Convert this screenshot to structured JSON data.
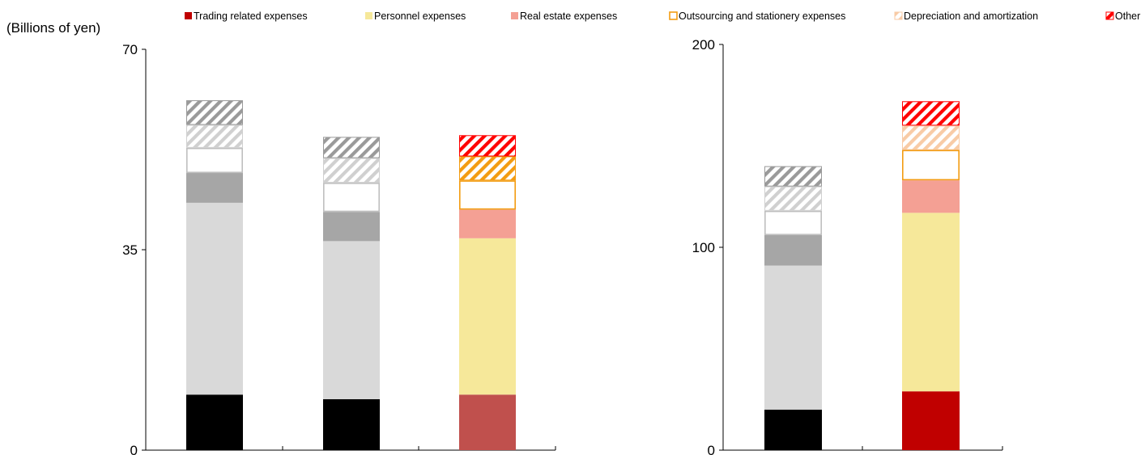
{
  "unit_label": "(Billions of yen)",
  "legend": [
    {
      "key": "trading",
      "label": "Trading related expenses",
      "swatch": "solid",
      "color": "#c00000"
    },
    {
      "key": "personnel",
      "label": "Personnel expenses",
      "swatch": "solid",
      "color": "#f6e89a"
    },
    {
      "key": "realestate",
      "label": "Real estate expenses",
      "swatch": "solid",
      "color": "#f4a094"
    },
    {
      "key": "outsourcing",
      "label": "Outsourcing and stationery expenses",
      "swatch": "outline",
      "color": "#f39c12"
    },
    {
      "key": "depreciation",
      "label": "Depreciation and amortization",
      "swatch": "hatch",
      "color": "#f8cba6"
    },
    {
      "key": "other",
      "label": "Other",
      "swatch": "hatch",
      "color": "#ff0000"
    }
  ],
  "chart_data": [
    {
      "type": "bar",
      "stacked": true,
      "ylim": [
        0,
        70
      ],
      "yticks": [
        0,
        35,
        70
      ],
      "legend_position": "top",
      "grid": false,
      "categories": [
        "",
        "",
        ""
      ],
      "series": [
        {
          "key": "trading",
          "values": [
            9.7,
            8.9,
            9.7
          ]
        },
        {
          "key": "personnel",
          "values": [
            33.5,
            27.6,
            27.3
          ]
        },
        {
          "key": "realestate",
          "values": [
            5.2,
            5.1,
            5.0
          ]
        },
        {
          "key": "outsourcing",
          "values": [
            4.4,
            5.1,
            5.1
          ]
        },
        {
          "key": "depreciation",
          "values": [
            4.0,
            4.3,
            4.2
          ]
        },
        {
          "key": "other",
          "values": [
            4.3,
            3.7,
            3.7
          ]
        }
      ],
      "bar_styles": [
        {
          "trading": "#000000",
          "personnel": "#d9d9d9",
          "realestate": "#a6a6a6",
          "outsourcing": "#ffffff|#bfbfbf",
          "depreciation": "#d0d0d0",
          "other": "#9a9a9a"
        },
        {
          "trading": "#000000",
          "personnel": "#d9d9d9",
          "realestate": "#a6a6a6",
          "outsourcing": "#ffffff|#bfbfbf",
          "depreciation": "#d0d0d0",
          "other": "#9a9a9a"
        },
        {
          "trading": "#c0504d",
          "personnel": "#f6e89a",
          "realestate": "#f4a094",
          "outsourcing": "#ffffff|#f39c12",
          "depreciation": "#f39c12",
          "other": "#ff0000"
        }
      ]
    },
    {
      "type": "bar",
      "stacked": true,
      "ylim": [
        0,
        200
      ],
      "yticks": [
        0,
        100,
        200
      ],
      "legend_position": "top",
      "grid": false,
      "categories": [
        "",
        ""
      ],
      "series": [
        {
          "key": "trading",
          "values": [
            20,
            29
          ]
        },
        {
          "key": "personnel",
          "values": [
            71,
            88
          ]
        },
        {
          "key": "realestate",
          "values": [
            15,
            16
          ]
        },
        {
          "key": "outsourcing",
          "values": [
            12,
            15
          ]
        },
        {
          "key": "depreciation",
          "values": [
            12,
            12
          ]
        },
        {
          "key": "other",
          "values": [
            10,
            12
          ]
        }
      ],
      "bar_styles": [
        {
          "trading": "#000000",
          "personnel": "#d9d9d9",
          "realestate": "#a6a6a6",
          "outsourcing": "#ffffff|#bfbfbf",
          "depreciation": "#d0d0d0",
          "other": "#9a9a9a"
        },
        {
          "trading": "#c00000",
          "personnel": "#f6e89a",
          "realestate": "#f4a094",
          "outsourcing": "#ffffff|#f39c12",
          "depreciation": "#f8cba6",
          "other": "#ff0000"
        }
      ]
    }
  ]
}
